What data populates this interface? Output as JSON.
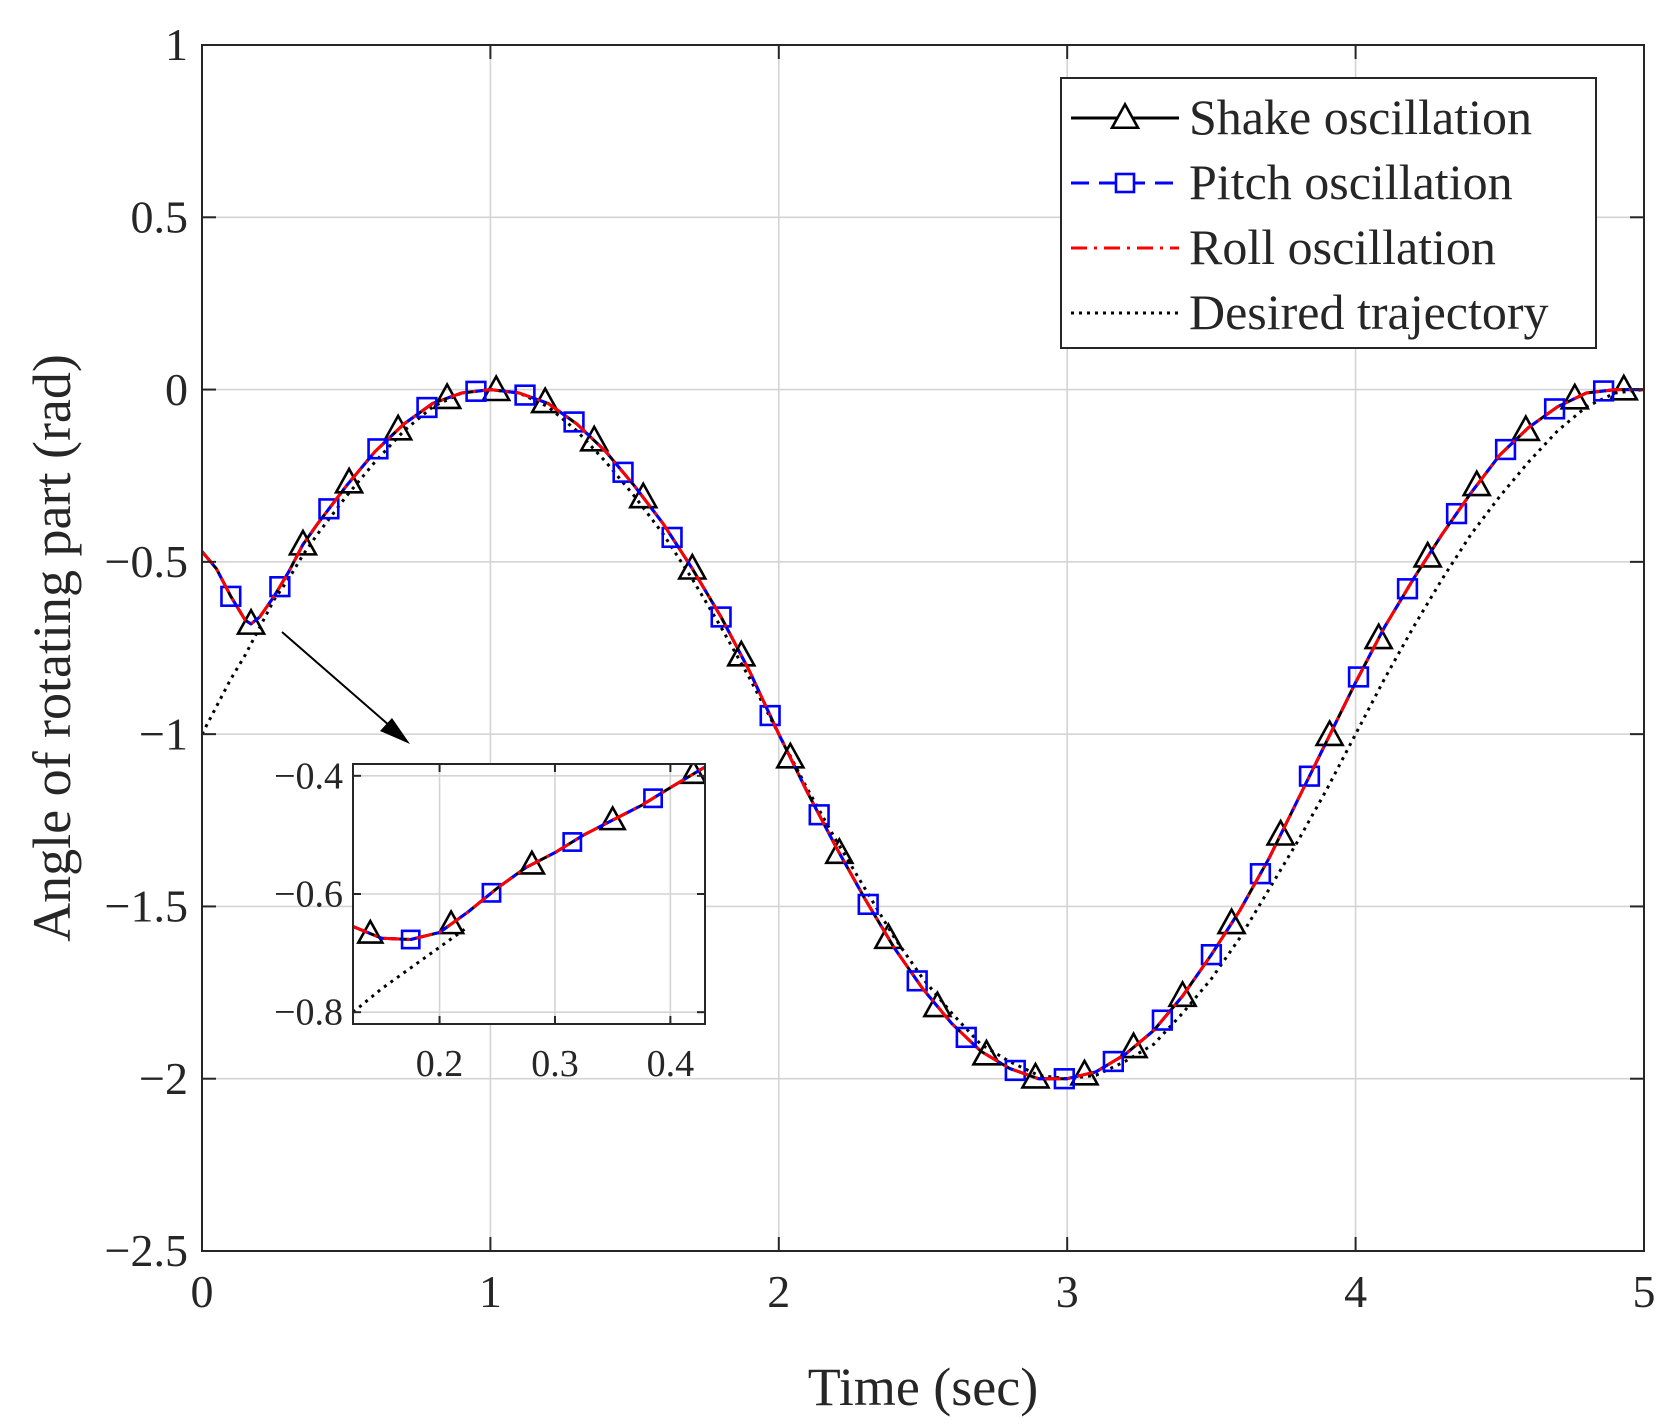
{
  "chart_data": [
    {
      "type": "line",
      "title": "",
      "xlabel": "Time (sec)",
      "ylabel": "Angle of rotating part (rad)",
      "xlim": [
        0,
        5
      ],
      "ylim": [
        -2.5,
        1
      ],
      "xticks": [
        0,
        1,
        2,
        3,
        4,
        5
      ],
      "yticks": [
        1,
        0.5,
        0,
        -0.5,
        -1,
        -1.5,
        -2,
        -2.5
      ],
      "xtick_labels": [
        "0",
        "1",
        "2",
        "3",
        "4",
        "5"
      ],
      "ytick_labels": [
        "1",
        "0.5",
        "0",
        "−0.5",
        "−1",
        "−1.5",
        "−2",
        "−2.5"
      ],
      "grid": true,
      "legend_position": "top-right",
      "series": [
        {
          "name": "Shake oscillation",
          "color": "#000000",
          "line_style": "solid",
          "marker": "triangle",
          "x": [
            0,
            0.05,
            0.1,
            0.15,
            0.17,
            0.2,
            0.25,
            0.3,
            0.35,
            0.4,
            0.5,
            0.6,
            0.7,
            0.8,
            0.9,
            1.0,
            1.1,
            1.2,
            1.3,
            1.4,
            1.5,
            1.6,
            1.7,
            1.8,
            1.9,
            2.0,
            2.1,
            2.2,
            2.3,
            2.4,
            2.5,
            2.6,
            2.7,
            2.8,
            2.9,
            3.0,
            3.1,
            3.2,
            3.3,
            3.4,
            3.5,
            3.6,
            3.7,
            3.8,
            3.9,
            4.0,
            4.1,
            4.2,
            4.3,
            4.4,
            4.5,
            4.6,
            4.7,
            4.8,
            4.9,
            5.0
          ],
          "y": [
            -0.47,
            -0.52,
            -0.6,
            -0.67,
            -0.68,
            -0.66,
            -0.6,
            -0.53,
            -0.45,
            -0.39,
            -0.28,
            -0.18,
            -0.1,
            -0.04,
            -0.01,
            0.0,
            -0.01,
            -0.04,
            -0.1,
            -0.18,
            -0.28,
            -0.39,
            -0.52,
            -0.66,
            -0.82,
            -1.0,
            -1.17,
            -1.33,
            -1.48,
            -1.62,
            -1.74,
            -1.84,
            -1.92,
            -1.97,
            -2.0,
            -2.0,
            -1.98,
            -1.93,
            -1.86,
            -1.76,
            -1.64,
            -1.51,
            -1.36,
            -1.19,
            -1.02,
            -0.85,
            -0.69,
            -0.55,
            -0.42,
            -0.3,
            -0.19,
            -0.11,
            -0.05,
            -0.01,
            0.0,
            0.0
          ],
          "marker_x": [
            0.17,
            0.35,
            0.51,
            0.68,
            0.85,
            1.02,
            1.19,
            1.36,
            1.53,
            1.7,
            1.87,
            2.04,
            2.21,
            2.38,
            2.55,
            2.72,
            2.89,
            3.06,
            3.23,
            3.4,
            3.57,
            3.74,
            3.91,
            4.08,
            4.25,
            4.42,
            4.59,
            4.76,
            4.93
          ]
        },
        {
          "name": "Pitch oscillation",
          "color": "#0000ff",
          "line_style": "dashed",
          "marker": "square",
          "x": [
            0,
            0.05,
            0.1,
            0.15,
            0.17,
            0.2,
            0.25,
            0.3,
            0.35,
            0.4,
            0.5,
            0.6,
            0.7,
            0.8,
            0.9,
            1.0,
            1.1,
            1.2,
            1.3,
            1.4,
            1.5,
            1.6,
            1.7,
            1.8,
            1.9,
            2.0,
            2.1,
            2.2,
            2.3,
            2.4,
            2.5,
            2.6,
            2.7,
            2.8,
            2.9,
            3.0,
            3.1,
            3.2,
            3.3,
            3.4,
            3.5,
            3.6,
            3.7,
            3.8,
            3.9,
            4.0,
            4.1,
            4.2,
            4.3,
            4.4,
            4.5,
            4.6,
            4.7,
            4.8,
            4.9,
            5.0
          ],
          "y": [
            -0.47,
            -0.52,
            -0.6,
            -0.67,
            -0.68,
            -0.66,
            -0.6,
            -0.53,
            -0.45,
            -0.39,
            -0.28,
            -0.18,
            -0.1,
            -0.04,
            -0.01,
            0.0,
            -0.01,
            -0.04,
            -0.1,
            -0.18,
            -0.28,
            -0.39,
            -0.52,
            -0.66,
            -0.82,
            -1.0,
            -1.17,
            -1.33,
            -1.48,
            -1.62,
            -1.74,
            -1.84,
            -1.92,
            -1.97,
            -2.0,
            -2.0,
            -1.98,
            -1.93,
            -1.86,
            -1.76,
            -1.64,
            -1.51,
            -1.36,
            -1.19,
            -1.02,
            -0.85,
            -0.69,
            -0.55,
            -0.42,
            -0.3,
            -0.19,
            -0.11,
            -0.05,
            -0.01,
            0.0,
            0.0
          ],
          "marker_x": [
            0.1,
            0.27,
            0.44,
            0.61,
            0.78,
            0.95,
            1.12,
            1.29,
            1.46,
            1.63,
            1.8,
            1.97,
            2.14,
            2.31,
            2.48,
            2.65,
            2.82,
            2.99,
            3.16,
            3.33,
            3.5,
            3.67,
            3.84,
            4.01,
            4.18,
            4.35,
            4.52,
            4.69,
            4.86
          ]
        },
        {
          "name": "Roll oscillation",
          "color": "#ff0000",
          "line_style": "dashdot",
          "marker": "none",
          "x": [
            0,
            0.05,
            0.1,
            0.15,
            0.17,
            0.2,
            0.25,
            0.3,
            0.35,
            0.4,
            0.5,
            0.6,
            0.7,
            0.8,
            0.9,
            1.0,
            1.1,
            1.2,
            1.3,
            1.4,
            1.5,
            1.6,
            1.7,
            1.8,
            1.9,
            2.0,
            2.1,
            2.2,
            2.3,
            2.4,
            2.5,
            2.6,
            2.7,
            2.8,
            2.9,
            3.0,
            3.1,
            3.2,
            3.3,
            3.4,
            3.5,
            3.6,
            3.7,
            3.8,
            3.9,
            4.0,
            4.1,
            4.2,
            4.3,
            4.4,
            4.5,
            4.6,
            4.7,
            4.8,
            4.9,
            5.0
          ],
          "y": [
            -0.47,
            -0.52,
            -0.6,
            -0.67,
            -0.68,
            -0.66,
            -0.6,
            -0.53,
            -0.45,
            -0.39,
            -0.28,
            -0.18,
            -0.1,
            -0.04,
            -0.01,
            0.0,
            -0.01,
            -0.04,
            -0.1,
            -0.18,
            -0.28,
            -0.39,
            -0.52,
            -0.66,
            -0.82,
            -1.0,
            -1.17,
            -1.33,
            -1.48,
            -1.62,
            -1.74,
            -1.84,
            -1.92,
            -1.97,
            -2.0,
            -2.0,
            -1.98,
            -1.93,
            -1.86,
            -1.76,
            -1.64,
            -1.51,
            -1.36,
            -1.19,
            -1.02,
            -0.85,
            -0.69,
            -0.55,
            -0.42,
            -0.3,
            -0.19,
            -0.11,
            -0.05,
            -0.01,
            0.0,
            0.0
          ]
        },
        {
          "name": "Desired trajectory",
          "color": "#000000",
          "line_style": "dotted",
          "marker": "none",
          "x": [
            0,
            0.05,
            0.1,
            0.15,
            0.2,
            0.25,
            0.3,
            0.35,
            0.4,
            0.5,
            0.6,
            0.7,
            0.8,
            0.9,
            1.0,
            1.1,
            1.2,
            1.3,
            1.4,
            1.5,
            1.6,
            1.7,
            1.8,
            1.9,
            2.0,
            2.1,
            2.2,
            2.3,
            2.4,
            2.5,
            2.6,
            2.7,
            2.8,
            2.9,
            3.0,
            3.1,
            3.2,
            3.3,
            3.4,
            3.5,
            3.6,
            3.7,
            3.8,
            3.9,
            4.0,
            4.1,
            4.2,
            4.3,
            4.4,
            4.5,
            4.6,
            4.7,
            4.8,
            4.9,
            5.0
          ],
          "y": [
            -1.0,
            -0.92,
            -0.84,
            -0.77,
            -0.69,
            -0.61,
            -0.55,
            -0.48,
            -0.42,
            -0.31,
            -0.21,
            -0.12,
            -0.05,
            -0.01,
            0.0,
            -0.01,
            -0.05,
            -0.12,
            -0.21,
            -0.31,
            -0.42,
            -0.55,
            -0.69,
            -0.84,
            -1.0,
            -1.16,
            -1.31,
            -1.45,
            -1.59,
            -1.71,
            -1.81,
            -1.9,
            -1.95,
            -1.99,
            -2.0,
            -1.99,
            -1.95,
            -1.9,
            -1.81,
            -1.71,
            -1.59,
            -1.45,
            -1.31,
            -1.16,
            -1.0,
            -0.84,
            -0.69,
            -0.55,
            -0.42,
            -0.31,
            -0.21,
            -0.12,
            -0.05,
            -0.01,
            0.0
          ]
        }
      ],
      "annotations": [
        {
          "type": "arrow",
          "from": [
            0.3,
            -0.68
          ],
          "to_inset": true
        }
      ]
    },
    {
      "type": "line",
      "title": "",
      "role": "inset-zoom",
      "xlim": [
        0.125,
        0.43
      ],
      "ylim": [
        -0.82,
        -0.38
      ],
      "xticks": [
        0.2,
        0.3,
        0.4
      ],
      "yticks": [
        -0.4,
        -0.6,
        -0.8
      ],
      "xtick_labels": [
        "0.2",
        "0.3",
        "0.4"
      ],
      "ytick_labels": [
        "−0.4",
        "−0.6",
        "−0.8"
      ],
      "grid": true,
      "series": [
        {
          "name": "Shake oscillation",
          "color": "#000000",
          "line_style": "solid",
          "marker": "triangle",
          "x": [
            0.125,
            0.15,
            0.175,
            0.2,
            0.225,
            0.25,
            0.275,
            0.3,
            0.325,
            0.35,
            0.375,
            0.4,
            0.43
          ],
          "y": [
            -0.655,
            -0.675,
            -0.677,
            -0.665,
            -0.63,
            -0.59,
            -0.555,
            -0.53,
            -0.5,
            -0.475,
            -0.45,
            -0.42,
            -0.385
          ],
          "marker_x": [
            0.14,
            0.21,
            0.28,
            0.35,
            0.42
          ]
        },
        {
          "name": "Pitch oscillation",
          "color": "#0000ff",
          "line_style": "dashed",
          "marker": "square",
          "x": [
            0.125,
            0.15,
            0.175,
            0.2,
            0.225,
            0.25,
            0.275,
            0.3,
            0.325,
            0.35,
            0.375,
            0.4,
            0.43
          ],
          "y": [
            -0.655,
            -0.675,
            -0.677,
            -0.665,
            -0.63,
            -0.59,
            -0.555,
            -0.53,
            -0.5,
            -0.475,
            -0.45,
            -0.42,
            -0.385
          ],
          "marker_x": [
            0.175,
            0.245,
            0.315,
            0.385
          ]
        },
        {
          "name": "Roll oscillation",
          "color": "#ff0000",
          "line_style": "dashdot",
          "marker": "none",
          "x": [
            0.125,
            0.15,
            0.175,
            0.2,
            0.225,
            0.25,
            0.275,
            0.3,
            0.325,
            0.35,
            0.375,
            0.4,
            0.43
          ],
          "y": [
            -0.655,
            -0.675,
            -0.677,
            -0.665,
            -0.63,
            -0.59,
            -0.555,
            -0.53,
            -0.5,
            -0.475,
            -0.45,
            -0.42,
            -0.385
          ]
        },
        {
          "name": "Desired trajectory",
          "color": "#000000",
          "line_style": "dotted",
          "marker": "none",
          "x": [
            0.125,
            0.15,
            0.175,
            0.2,
            0.225
          ],
          "y": [
            -0.8,
            -0.76,
            -0.725,
            -0.69,
            -0.655
          ]
        }
      ]
    }
  ]
}
